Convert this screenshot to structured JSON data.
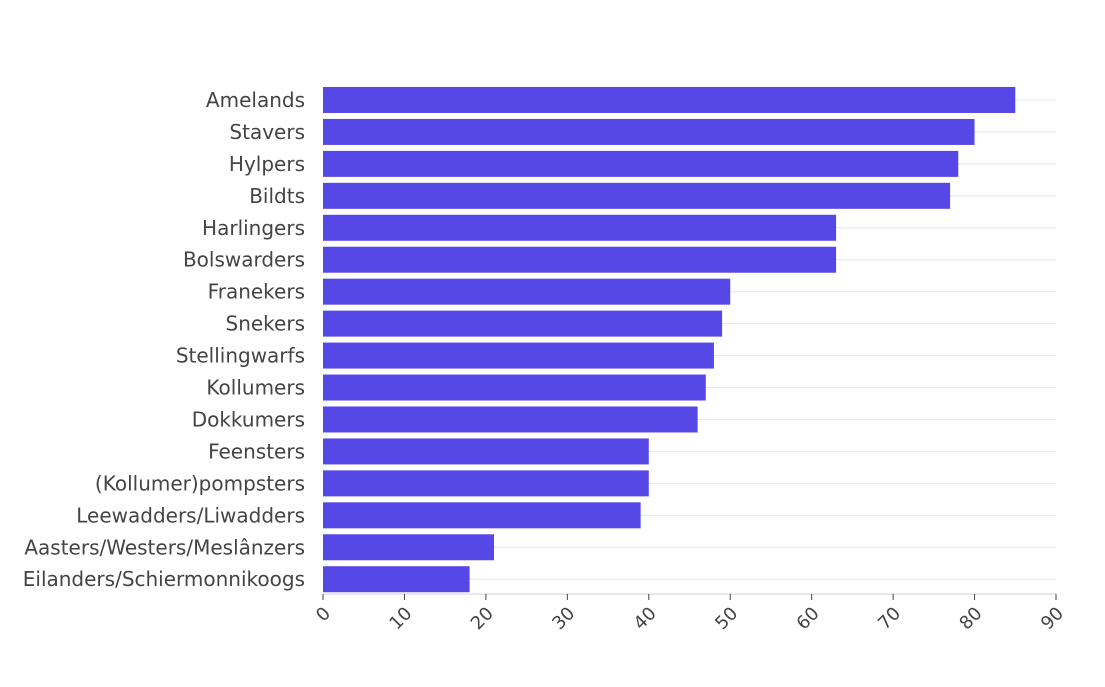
{
  "chart_data": {
    "type": "bar",
    "orientation": "horizontal",
    "title": "",
    "xlabel": "",
    "ylabel": "",
    "categories": [
      "Amelands",
      "Stavers",
      "Hylpers",
      "Bildts",
      "Harlingers",
      "Bolswarders",
      "Franekers",
      "Snekers",
      "Stellingwarfs",
      "Kollumers",
      "Dokkumers",
      "Feensters",
      "(Kollumer)pompsters",
      "Leewadders/Liwadders",
      "Aasters/Westers/Meslânzers",
      "Eilanders/Schiermonnikoogs"
    ],
    "values": [
      85,
      80,
      78,
      77,
      63,
      63,
      50,
      49,
      48,
      47,
      46,
      40,
      40,
      39,
      21,
      18
    ],
    "xlim": [
      0,
      90
    ],
    "xticks": [
      "0",
      "10",
      "20",
      "30",
      "40",
      "50",
      "60",
      "70",
      "80",
      "90"
    ],
    "grid": "horizontal",
    "legend": "none",
    "bar_color": "#5548e6"
  }
}
